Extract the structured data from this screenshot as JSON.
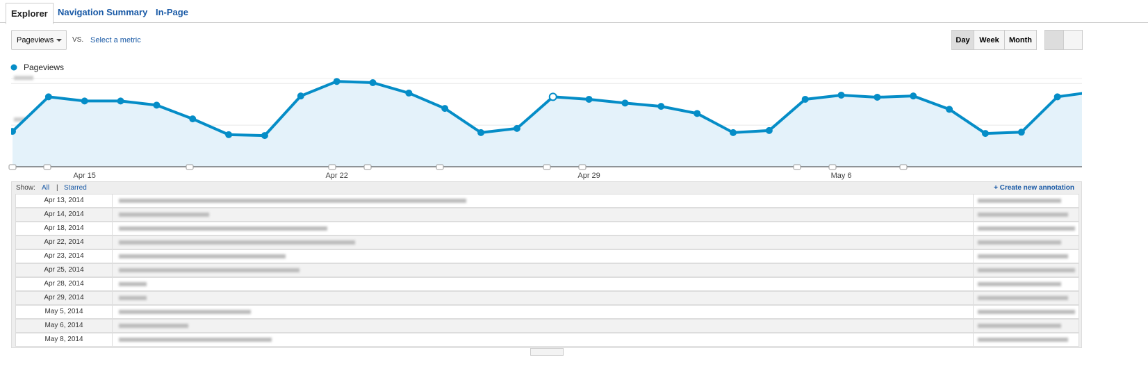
{
  "tabs": [
    "Explorer",
    "Navigation Summary",
    "In-Page"
  ],
  "controls": {
    "metric": "Pageviews",
    "vs": "VS.",
    "select_metric": "Select a metric",
    "periods": [
      "Day",
      "Week",
      "Month"
    ]
  },
  "chart_data": {
    "type": "line",
    "categories": [
      null,
      null,
      "Apr 15",
      null,
      null,
      null,
      null,
      null,
      null,
      "Apr 22",
      null,
      null,
      null,
      null,
      null,
      null,
      "Apr 29",
      null,
      null,
      null,
      null,
      null,
      null,
      "May 6",
      null,
      null,
      null,
      null,
      null,
      null,
      null
    ],
    "series": [
      {
        "name": "Pageviews",
        "color": "#058dc7",
        "values": [
          8.5,
          16.8,
          15.8,
          15.8,
          14.8,
          11.5,
          7.7,
          7.5,
          17.0,
          20.5,
          20.2,
          17.7,
          14.0,
          8.2,
          9.2,
          16.8,
          16.2,
          15.3,
          14.5,
          12.8,
          8.2,
          8.7,
          16.2,
          17.2,
          16.7,
          17.0,
          13.8,
          8.0,
          8.3,
          16.8,
          18.0
        ]
      }
    ],
    "ylim": [
      0,
      21.2
    ],
    "yticks": [
      10,
      20
    ],
    "grid": true
  },
  "annotations": {
    "show": "Show:",
    "all": "All",
    "sep": "|",
    "starred": "Starred",
    "create": "+ Create new annotation",
    "rows": [
      "Apr 13, 2014",
      "Apr 14, 2014",
      "Apr 18, 2014",
      "Apr 22, 2014",
      "Apr 23, 2014",
      "Apr 25, 2014",
      "Apr 28, 2014",
      "Apr 29, 2014",
      "May 5, 2014",
      "May 6, 2014",
      "May 8, 2014"
    ]
  }
}
